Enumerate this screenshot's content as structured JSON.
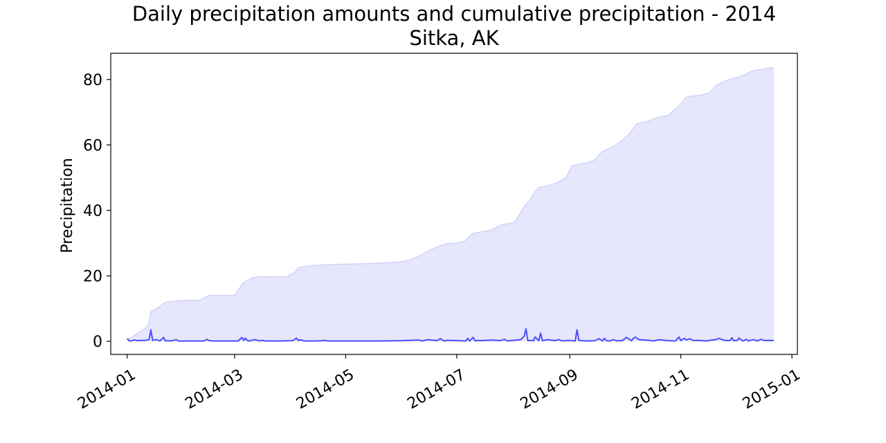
{
  "chart_data": {
    "type": "area",
    "title": "Daily precipitation amounts and cumulative precipitation - 2014",
    "subtitle": "Sitka, AK",
    "xlabel": "",
    "ylabel": "Precipitation",
    "xlim": [
      "2013-12-23",
      "2015-01-04"
    ],
    "ylim": [
      -4,
      88
    ],
    "x_ticks": [
      "2014-01",
      "2014-03",
      "2014-05",
      "2014-07",
      "2014-09",
      "2014-11",
      "2015-01"
    ],
    "x_tick_dates": [
      "2014-01-01",
      "2014-03-01",
      "2014-05-01",
      "2014-07-01",
      "2014-09-01",
      "2014-11-01",
      "2015-01-01"
    ],
    "y_ticks": [
      0,
      20,
      40,
      60,
      80
    ],
    "grid": false,
    "colors": {
      "daily_line": "#4d4dff",
      "cumulative_fill": "#e6e6fc",
      "cumulative_edge": "#d2d2fa"
    },
    "series": [
      {
        "kind": "area",
        "x": [
          "2014-01-01",
          "2014-01-03",
          "2014-01-05",
          "2014-01-08",
          "2014-01-11",
          "2014-01-13",
          "2014-01-14",
          "2014-01-17",
          "2014-01-20",
          "2014-01-22",
          "2014-01-27",
          "2014-01-30",
          "2014-02-10",
          "2014-02-13",
          "2014-02-15",
          "2014-02-20",
          "2014-03-01",
          "2014-03-04",
          "2014-03-06",
          "2014-03-08",
          "2014-03-11",
          "2014-03-15",
          "2014-03-20",
          "2014-03-30",
          "2014-04-01",
          "2014-04-03",
          "2014-04-05",
          "2014-04-10",
          "2014-04-15",
          "2014-04-25",
          "2014-05-10",
          "2014-05-20",
          "2014-05-30",
          "2014-06-05",
          "2014-06-10",
          "2014-06-15",
          "2014-06-20",
          "2014-06-25",
          "2014-07-01",
          "2014-07-05",
          "2014-07-07",
          "2014-07-10",
          "2014-07-15",
          "2014-07-20",
          "2014-07-25",
          "2014-07-30",
          "2014-08-02",
          "2014-08-08",
          "2014-08-10",
          "2014-08-12",
          "2014-08-15",
          "2014-08-17",
          "2014-08-20",
          "2014-08-25",
          "2014-08-30",
          "2014-09-02",
          "2014-09-05",
          "2014-09-10",
          "2014-09-15",
          "2014-09-18",
          "2014-09-20",
          "2014-09-25",
          "2014-09-30",
          "2014-10-03",
          "2014-10-08",
          "2014-10-12",
          "2014-10-15",
          "2014-10-20",
          "2014-10-25",
          "2014-10-30",
          "2014-11-01",
          "2014-11-03",
          "2014-11-05",
          "2014-11-08",
          "2014-11-12",
          "2014-11-17",
          "2014-11-20",
          "2014-11-25",
          "2014-11-28",
          "2014-12-01",
          "2014-12-05",
          "2014-12-08",
          "2014-12-11",
          "2014-12-15",
          "2014-12-19",
          "2014-12-22"
        ],
        "values": [
          0.8,
          1.0,
          1.8,
          3.0,
          4.0,
          5.5,
          9.0,
          10.0,
          11.0,
          12.0,
          12.2,
          12.5,
          12.5,
          13.5,
          14.0,
          14.0,
          14.0,
          16.5,
          18.0,
          18.5,
          19.5,
          19.7,
          19.7,
          19.8,
          20.5,
          21.0,
          22.5,
          23.0,
          23.2,
          23.5,
          23.7,
          23.9,
          24.2,
          24.8,
          26.0,
          27.5,
          28.8,
          29.8,
          30.0,
          30.5,
          31.5,
          33.0,
          33.5,
          34.0,
          35.5,
          36.0,
          36.5,
          42.0,
          43.0,
          45.0,
          47.0,
          47.2,
          47.5,
          48.5,
          50.0,
          53.5,
          54.0,
          54.5,
          55.5,
          57.5,
          58.2,
          59.5,
          61.5,
          63.0,
          66.5,
          67.0,
          67.5,
          68.5,
          69.0,
          71.5,
          72.5,
          74.0,
          74.8,
          75.0,
          75.2,
          76.0,
          78.0,
          79.5,
          80.0,
          80.5,
          81.2,
          82.0,
          82.7,
          83.0,
          83.5,
          83.6
        ]
      },
      {
        "kind": "line",
        "x": [
          "2014-01-01",
          "2014-01-02",
          "2014-01-03",
          "2014-01-05",
          "2014-01-07",
          "2014-01-09",
          "2014-01-11",
          "2014-01-13",
          "2014-01-14",
          "2014-01-15",
          "2014-01-17",
          "2014-01-19",
          "2014-01-21",
          "2014-01-22",
          "2014-01-23",
          "2014-01-25",
          "2014-01-28",
          "2014-01-29",
          "2014-01-30",
          "2014-02-05",
          "2014-02-12",
          "2014-02-14",
          "2014-02-15",
          "2014-02-18",
          "2014-02-25",
          "2014-03-03",
          "2014-03-05",
          "2014-03-06",
          "2014-03-07",
          "2014-03-08",
          "2014-03-09",
          "2014-03-12",
          "2014-03-15",
          "2014-03-16",
          "2014-03-18",
          "2014-03-25",
          "2014-04-02",
          "2014-04-04",
          "2014-04-05",
          "2014-04-06",
          "2014-04-08",
          "2014-04-15",
          "2014-04-20",
          "2014-04-21",
          "2014-04-25",
          "2014-05-10",
          "2014-05-20",
          "2014-06-01",
          "2014-06-10",
          "2014-06-12",
          "2014-06-13",
          "2014-06-15",
          "2014-06-20",
          "2014-06-22",
          "2014-06-24",
          "2014-06-26",
          "2014-07-01",
          "2014-07-06",
          "2014-07-07",
          "2014-07-08",
          "2014-07-10",
          "2014-07-11",
          "2014-07-12",
          "2014-07-15",
          "2014-07-20",
          "2014-07-25",
          "2014-07-27",
          "2014-07-29",
          "2014-08-01",
          "2014-08-05",
          "2014-08-07",
          "2014-08-08",
          "2014-08-09",
          "2014-08-11",
          "2014-08-12",
          "2014-08-13",
          "2014-08-15",
          "2014-08-16",
          "2014-08-17",
          "2014-08-20",
          "2014-08-24",
          "2014-08-26",
          "2014-08-28",
          "2014-08-31",
          "2014-09-04",
          "2014-09-05",
          "2014-09-06",
          "2014-09-08",
          "2014-09-10",
          "2014-09-15",
          "2014-09-17",
          "2014-09-19",
          "2014-09-20",
          "2014-09-21",
          "2014-09-23",
          "2014-09-25",
          "2014-09-27",
          "2014-09-28",
          "2014-09-30",
          "2014-10-02",
          "2014-10-05",
          "2014-10-06",
          "2014-10-07",
          "2014-10-09",
          "2014-10-15",
          "2014-10-17",
          "2014-10-20",
          "2014-10-25",
          "2014-10-29",
          "2014-10-31",
          "2014-11-01",
          "2014-11-03",
          "2014-11-04",
          "2014-11-06",
          "2014-11-08",
          "2014-11-10",
          "2014-11-15",
          "2014-11-18",
          "2014-11-20",
          "2014-11-22",
          "2014-11-25",
          "2014-11-28",
          "2014-11-29",
          "2014-11-30",
          "2014-12-02",
          "2014-12-03",
          "2014-12-05",
          "2014-12-07",
          "2014-12-08",
          "2014-12-10",
          "2014-12-11",
          "2014-12-13",
          "2014-12-15",
          "2014-12-17",
          "2014-12-19",
          "2014-12-22"
        ],
        "values": [
          0.8,
          0.2,
          0.1,
          0.4,
          0.2,
          0.3,
          0.3,
          0.5,
          3.5,
          0.3,
          0.5,
          0.1,
          1.2,
          0.1,
          0.2,
          0.1,
          0.5,
          0.1,
          0.1,
          0.1,
          0.1,
          0.6,
          0.2,
          0.1,
          0.1,
          0.1,
          1.2,
          0.3,
          1.0,
          0.2,
          0.1,
          0.5,
          0.1,
          0.3,
          0.1,
          0.1,
          0.2,
          1.0,
          0.2,
          0.5,
          0.1,
          0.1,
          0.3,
          0.1,
          0.1,
          0.1,
          0.1,
          0.2,
          0.4,
          0.1,
          0.2,
          0.5,
          0.2,
          0.8,
          0.1,
          0.3,
          0.2,
          0.1,
          0.9,
          0.1,
          1.2,
          0.1,
          0.3,
          0.2,
          0.4,
          0.2,
          0.6,
          0.1,
          0.3,
          0.5,
          1.5,
          3.8,
          0.2,
          0.3,
          0.1,
          1.3,
          0.2,
          2.5,
          0.2,
          0.5,
          0.2,
          0.5,
          0.1,
          0.3,
          0.1,
          3.5,
          0.3,
          0.2,
          0.1,
          0.2,
          0.8,
          0.1,
          0.9,
          0.2,
          0.1,
          0.5,
          0.1,
          0.2,
          0.2,
          1.2,
          0.2,
          0.9,
          1.3,
          0.5,
          0.3,
          0.1,
          0.5,
          0.2,
          0.1,
          1.3,
          0.2,
          0.9,
          0.4,
          0.8,
          0.2,
          0.3,
          0.1,
          0.4,
          0.5,
          0.9,
          0.3,
          0.2,
          1.1,
          0.2,
          0.3,
          1.0,
          0.1,
          0.6,
          0.1,
          0.4,
          0.5,
          0.1,
          0.6,
          0.2,
          0.3,
          0.2
        ]
      }
    ]
  }
}
